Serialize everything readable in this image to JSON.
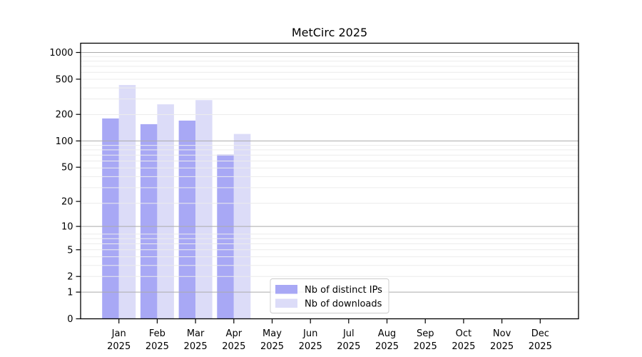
{
  "chart_data": {
    "type": "bar",
    "title": "MetCirc 2025",
    "categories": [
      "Jan",
      "Feb",
      "Mar",
      "Apr",
      "May",
      "Jun",
      "Jul",
      "Aug",
      "Sep",
      "Oct",
      "Nov",
      "Dec"
    ],
    "category_year": "2025",
    "series": [
      {
        "name": "Nb of distinct IPs",
        "color": "#a8a8f5",
        "values": [
          180,
          155,
          170,
          70,
          null,
          null,
          null,
          null,
          null,
          null,
          null,
          null
        ]
      },
      {
        "name": "Nb of downloads",
        "color": "#dcdcf8",
        "values": [
          430,
          260,
          290,
          120,
          null,
          null,
          null,
          null,
          null,
          null,
          null,
          null
        ]
      }
    ],
    "yscale": "log1p",
    "y_ticks": [
      0,
      1,
      2,
      5,
      10,
      20,
      50,
      100,
      200,
      500,
      1000
    ],
    "major_grid_values": [
      1,
      10,
      100,
      1000
    ],
    "ylim": [
      0,
      1260
    ],
    "xlabel": "",
    "ylabel": "",
    "grid": true,
    "legend_position": "lower center",
    "colors": {
      "major_grid": "#ababab",
      "minor_grid": "#ececec",
      "axis": "#000000",
      "text": "#000000",
      "legend_border": "#cccccc",
      "legend_fill": "#ffffff"
    }
  }
}
